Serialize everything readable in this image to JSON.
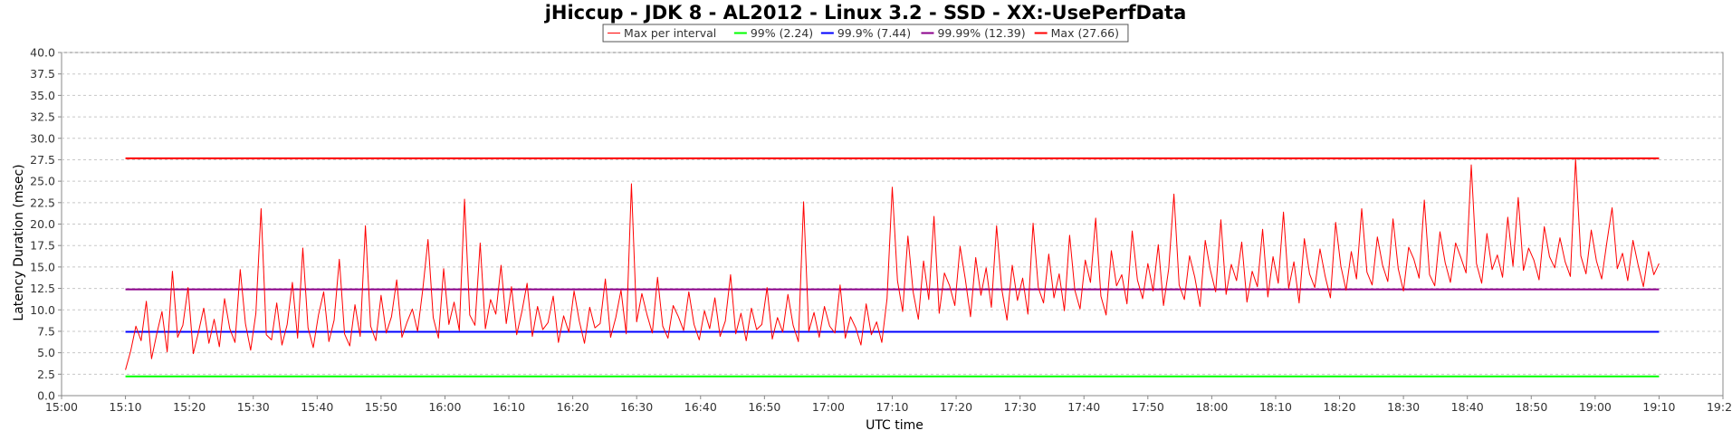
{
  "chart_data": {
    "type": "line",
    "title": "jHiccup - JDK 8 - AL2012 - Linux 3.2 - SSD - XX:-UsePerfData",
    "xlabel": "UTC time",
    "ylabel": "Latency Duration (msec)",
    "ylim": [
      0,
      40
    ],
    "xlim_minutes": [
      0,
      260
    ],
    "x_ticks": [
      "15:00",
      "15:10",
      "15:20",
      "15:30",
      "15:40",
      "15:50",
      "16:00",
      "16:10",
      "16:20",
      "16:30",
      "16:40",
      "16:50",
      "17:00",
      "17:10",
      "17:20",
      "17:30",
      "17:40",
      "17:50",
      "18:00",
      "18:10",
      "18:20",
      "18:30",
      "18:40",
      "18:50",
      "19:00",
      "19:10",
      "19:20"
    ],
    "y_ticks": [
      "0.0",
      "2.5",
      "5.0",
      "7.5",
      "10.0",
      "12.5",
      "15.0",
      "17.5",
      "20.0",
      "22.5",
      "25.0",
      "27.5",
      "30.0",
      "32.5",
      "35.0",
      "37.5",
      "40.0"
    ],
    "grid": true,
    "legend_position": "top-center",
    "series": [
      {
        "name": "Max per interval",
        "color": "#ff0000",
        "x_start": "15:10",
        "x_end": "19:10",
        "values": [
          3.0,
          5.2,
          8.1,
          6.4,
          11.0,
          4.3,
          7.2,
          9.8,
          5.1,
          14.5,
          6.8,
          8.2,
          12.6,
          4.9,
          7.4,
          10.2,
          6.1,
          8.9,
          5.7,
          11.3,
          7.8,
          6.2,
          14.7,
          8.4,
          5.3,
          9.6,
          21.8,
          7.1,
          6.5,
          10.8,
          5.9,
          8.3,
          13.2,
          6.7,
          17.2,
          7.9,
          5.6,
          9.4,
          12.1,
          6.3,
          8.8,
          15.9,
          7.2,
          5.8,
          10.6,
          6.9,
          19.8,
          8.1,
          6.4,
          11.7,
          7.3,
          9.2,
          13.5,
          6.8,
          8.6,
          10.1,
          7.5,
          12.4,
          18.2,
          9.1,
          6.7,
          14.8,
          8.3,
          10.9,
          7.6,
          22.9,
          9.4,
          8.2,
          17.8,
          7.8,
          11.2,
          9.5,
          15.2,
          8.4,
          12.7,
          7.1,
          9.8,
          13.1,
          6.9,
          10.4,
          7.7,
          8.5,
          11.6,
          6.2,
          9.3,
          7.4,
          12.2,
          8.7,
          6.1,
          10.3,
          7.9,
          8.4,
          13.6,
          6.8,
          9.1,
          12.3,
          7.2,
          24.7,
          8.6,
          11.9,
          9.4,
          7.3,
          13.8,
          8.1,
          6.7,
          10.5,
          9.2,
          7.6,
          12.1,
          8.3,
          6.5,
          9.9,
          7.8,
          11.4,
          6.9,
          8.7,
          14.1,
          7.2,
          9.6,
          6.4,
          10.2,
          7.7,
          8.3,
          12.6,
          6.6,
          9.1,
          7.4,
          11.8,
          8.2,
          6.3,
          22.6,
          7.5,
          9.7,
          6.8,
          10.4,
          8.1,
          7.3,
          12.9,
          6.7,
          9.2,
          7.9,
          5.9,
          10.7,
          7.1,
          8.6,
          6.2,
          11.3,
          24.3,
          13.4,
          9.8,
          18.6,
          12.1,
          8.9,
          15.7,
          11.2,
          20.9,
          9.6,
          14.3,
          12.8,
          10.5,
          17.4,
          13.6,
          9.2,
          16.1,
          11.7,
          14.9,
          10.3,
          19.8,
          12.4,
          8.8,
          15.2,
          11.1,
          13.7,
          9.5,
          20.1,
          12.6,
          10.8,
          16.5,
          11.4,
          14.2,
          9.9,
          18.7,
          12.3,
          10.1,
          15.8,
          13.2,
          20.7,
          11.6,
          9.4,
          16.9,
          12.8,
          14.1,
          10.7,
          19.2,
          13.5,
          11.3,
          15.4,
          12.2,
          17.6,
          10.5,
          14.8,
          23.5,
          12.9,
          11.2,
          16.3,
          13.8,
          10.4,
          18.1,
          14.6,
          12.1,
          20.5,
          11.8,
          15.3,
          13.4,
          17.9,
          10.9,
          14.5,
          12.7,
          19.4,
          11.5,
          16.2,
          13.1,
          21.4,
          12.5,
          15.6,
          10.8,
          18.3,
          14.2,
          12.6,
          17.1,
          13.9,
          11.4,
          20.2,
          15.1,
          12.3,
          16.8,
          13.6,
          21.8,
          14.4,
          12.9,
          18.5,
          15.2,
          13.3,
          20.6,
          14.8,
          12.2,
          17.3,
          15.9,
          13.7,
          22.8,
          14.1,
          12.8,
          19.1,
          15.5,
          13.2,
          17.8,
          16.1,
          14.3,
          26.9,
          15.4,
          13.1,
          18.9,
          14.7,
          16.4,
          13.8,
          20.8,
          15.1,
          23.1,
          14.6,
          17.2,
          15.8,
          13.5,
          19.7,
          16.2,
          14.9,
          18.4,
          15.6,
          13.9,
          27.6,
          16.3,
          14.2,
          19.3,
          15.7,
          13.6,
          17.9,
          21.9,
          14.8,
          16.6,
          13.4,
          18.1,
          15.2,
          12.7,
          16.8,
          14.1,
          15.4
        ]
      },
      {
        "name": "99% (2.24)",
        "color": "#00ff00",
        "value": 2.24
      },
      {
        "name": "99.9% (7.44)",
        "color": "#0000ff",
        "value": 7.44
      },
      {
        "name": "99.99% (12.39)",
        "color": "#8b008b",
        "value": 12.39
      },
      {
        "name": "Max (27.66)",
        "color": "#ff0000",
        "value": 27.66
      }
    ]
  }
}
